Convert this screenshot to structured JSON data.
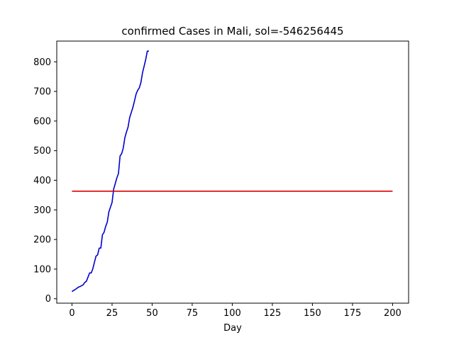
{
  "chart_data": {
    "type": "line",
    "title": "confirmed Cases in Mali, sol=-546256445",
    "xlabel": "Day",
    "ylabel": "",
    "xlim": [
      -9.5,
      210
    ],
    "ylim": [
      -15,
      870
    ],
    "xticks": [
      0,
      25,
      50,
      75,
      100,
      125,
      150,
      175,
      200
    ],
    "yticks": [
      0,
      100,
      200,
      300,
      400,
      500,
      600,
      700,
      800
    ],
    "grid": false,
    "series": [
      {
        "color": "#0000cc",
        "x": [
          0,
          1,
          2,
          3,
          4,
          5,
          6,
          7,
          8,
          9,
          10,
          11,
          12,
          13,
          14,
          15,
          16,
          17,
          18,
          19,
          20,
          21,
          22,
          23,
          24,
          25,
          26,
          27,
          28,
          29,
          30,
          31,
          32,
          33,
          34,
          35,
          36,
          37,
          38,
          39,
          40,
          41,
          42,
          43,
          44,
          45,
          46,
          47,
          48
        ],
        "y": [
          24,
          28,
          31,
          35,
          39,
          41,
          44,
          47,
          55,
          59,
          73,
          87,
          87,
          101,
          123,
          144,
          148,
          171,
          171,
          216,
          224,
          244,
          258,
          293,
          309,
          325,
          370,
          389,
          408,
          423,
          482,
          490,
          509,
          544,
          563,
          580,
          612,
          629,
          646,
          668,
          691,
          704,
          712,
          730,
          763,
          785,
          808,
          836,
          836
        ]
      },
      {
        "color": "#dd0000",
        "x": [
          0,
          200
        ],
        "y": [
          363,
          363
        ]
      }
    ]
  }
}
